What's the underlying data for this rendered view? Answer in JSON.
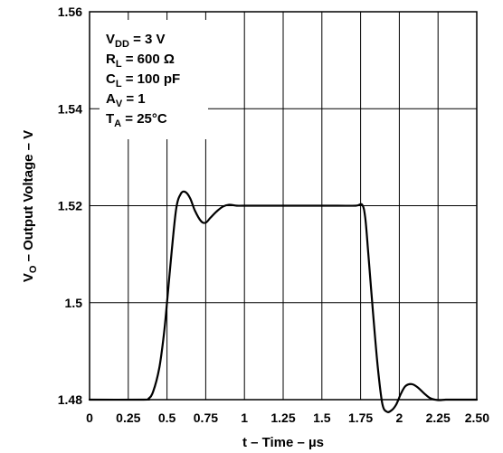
{
  "chart_data": {
    "type": "line",
    "xlabel": "t – Time – µs",
    "ylabel_main": "V",
    "ylabel_sub": "O",
    "ylabel_rest": " – Output Voltage – V",
    "xlim": [
      0,
      2.5
    ],
    "ylim": [
      1.48,
      1.56
    ],
    "x_ticks": [
      0,
      0.25,
      0.5,
      0.75,
      1,
      1.25,
      1.5,
      1.75,
      2,
      2.25,
      2.5
    ],
    "x_tick_labels": [
      "0",
      "0.25",
      "0.5",
      "0.75",
      "1",
      "1.25",
      "1.5",
      "1.75",
      "2",
      "2.25",
      "2.50"
    ],
    "y_ticks": [
      1.48,
      1.5,
      1.52,
      1.54,
      1.56
    ],
    "y_tick_labels": [
      "1.48",
      "1.5",
      "1.52",
      "1.54",
      "1.56"
    ],
    "grid": true,
    "conditions": [
      {
        "main": "V",
        "sub": "DD",
        "rest": " = 3 V"
      },
      {
        "main": "R",
        "sub": "L",
        "rest": " = 600 Ω"
      },
      {
        "main": "C",
        "sub": "L",
        "rest": " = 100  pF"
      },
      {
        "main": "A",
        "sub": "V",
        "rest": " = 1"
      },
      {
        "main": "T",
        "sub": "A",
        "rest": " = 25°C"
      }
    ],
    "series": [
      {
        "x": [
          0,
          0.35,
          0.38,
          0.41,
          0.45,
          0.48,
          0.5,
          0.53,
          0.56,
          0.59,
          0.62,
          0.65,
          0.68,
          0.72,
          0.75,
          0.78,
          0.82,
          0.86,
          0.9,
          0.95,
          1.0,
          1.2,
          1.4,
          1.6,
          1.72,
          1.76,
          1.78,
          1.8,
          1.83,
          1.86,
          1.89,
          1.92,
          1.95,
          1.98,
          2.01,
          2.04,
          2.08,
          2.12,
          2.16,
          2.2,
          2.25,
          2.3,
          2.35,
          2.5
        ],
        "y": [
          1.48,
          1.48,
          1.4802,
          1.4816,
          1.4865,
          1.4935,
          1.5,
          1.5105,
          1.5195,
          1.5225,
          1.5228,
          1.5215,
          1.519,
          1.5168,
          1.5165,
          1.5175,
          1.5188,
          1.5198,
          1.5202,
          1.52,
          1.52,
          1.52,
          1.52,
          1.52,
          1.52,
          1.5202,
          1.5175,
          1.51,
          1.498,
          1.487,
          1.4792,
          1.4775,
          1.4778,
          1.479,
          1.4812,
          1.4828,
          1.4832,
          1.4825,
          1.4813,
          1.4803,
          1.4799,
          1.48,
          1.48,
          1.48
        ]
      }
    ]
  }
}
